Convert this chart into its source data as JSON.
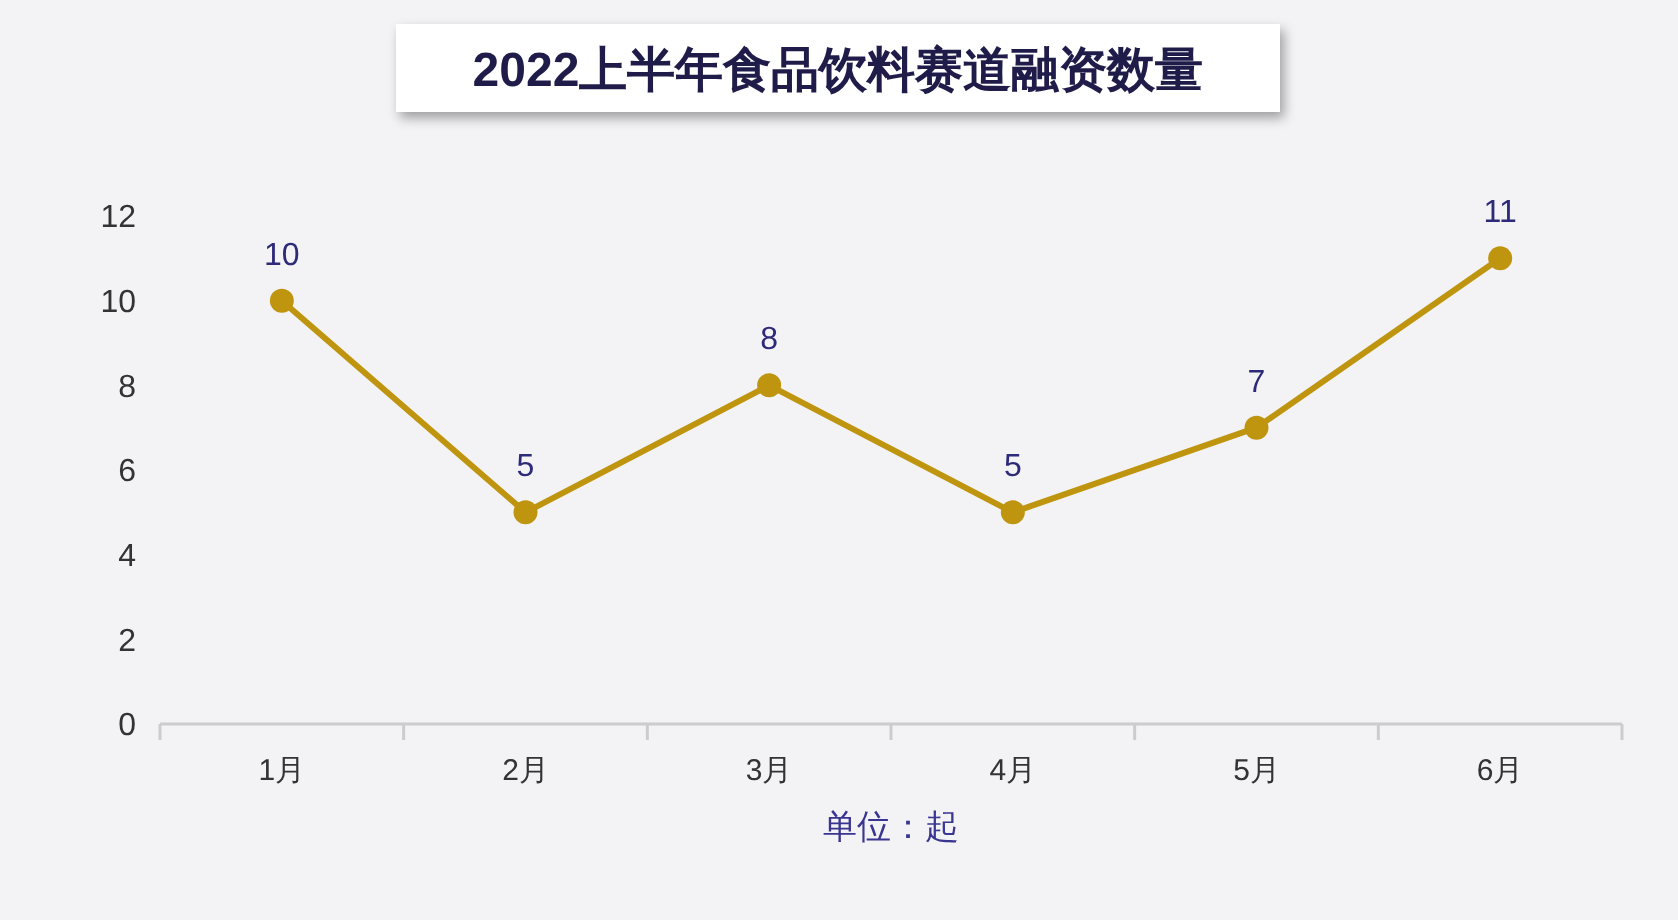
{
  "chart_data": {
    "type": "line",
    "title": "2022上半年食品饮料赛道融资数量",
    "xlabel": "单位：起",
    "categories": [
      "1月",
      "2月",
      "3月",
      "4月",
      "5月",
      "6月"
    ],
    "series": [
      {
        "color": "#bf950f",
        "values": [
          10,
          5,
          8,
          5,
          7,
          11
        ]
      }
    ],
    "ylim": [
      0,
      12
    ],
    "yticks": [
      0,
      2,
      4,
      6,
      8,
      10,
      12
    ],
    "grid": false,
    "marker": "circle",
    "line_style": "solid",
    "data_labels": true
  }
}
